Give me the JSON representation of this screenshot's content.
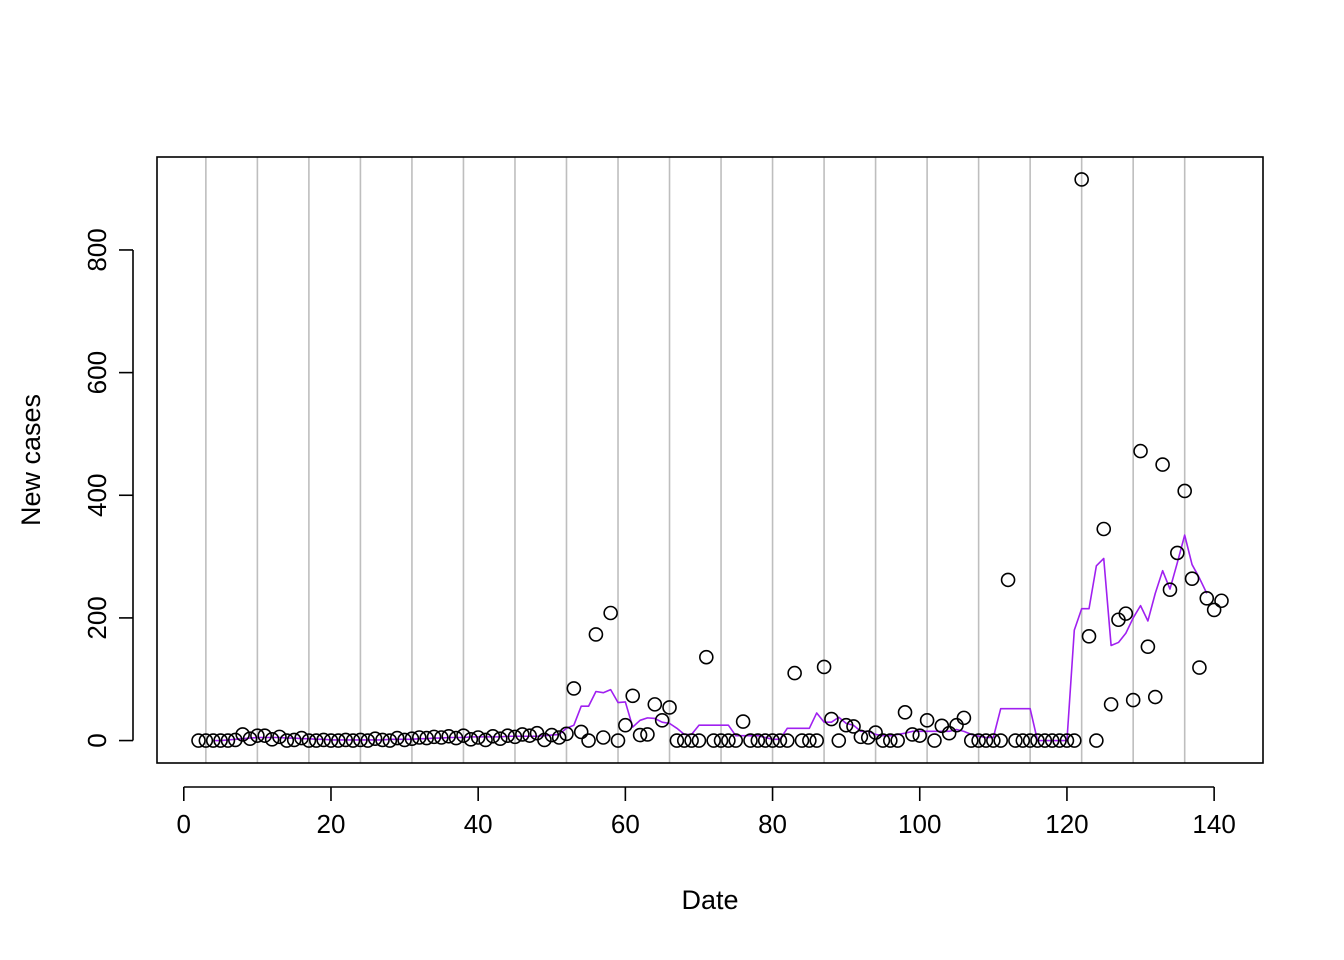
{
  "chart_data": {
    "type": "scatter",
    "title": "",
    "xlabel": "Date",
    "ylabel": "New cases",
    "xlim": [
      -3.64,
      146.64
    ],
    "ylim": [
      -36.6,
      951.6
    ],
    "xticks": [
      0,
      20,
      40,
      60,
      80,
      100,
      120,
      140
    ],
    "yticks": [
      0,
      200,
      400,
      600,
      800
    ],
    "grid": "vertical",
    "vlines": [
      3,
      10,
      17,
      24,
      31,
      38,
      45,
      52,
      59,
      66,
      73,
      80,
      87,
      94,
      101,
      108,
      115,
      122,
      129,
      136
    ],
    "colors": {
      "points": "#000000",
      "line": "#a020f0",
      "grid": "#bebebe",
      "axes": "#000000"
    },
    "series": [
      {
        "type": "scatter",
        "x": [
          2,
          3,
          4,
          5,
          6,
          7,
          8,
          9,
          10,
          11,
          12,
          13,
          14,
          15,
          16,
          17,
          18,
          19,
          20,
          21,
          22,
          23,
          24,
          25,
          26,
          27,
          28,
          29,
          30,
          31,
          32,
          33,
          34,
          35,
          36,
          37,
          38,
          39,
          40,
          41,
          42,
          43,
          44,
          45,
          46,
          47,
          48,
          49,
          50,
          51,
          52,
          53,
          54,
          55,
          56,
          57,
          58,
          59,
          60,
          61,
          62,
          63,
          64,
          65,
          66,
          67,
          68,
          69,
          70,
          71,
          72,
          73,
          74,
          75,
          76,
          77,
          78,
          79,
          80,
          81,
          82,
          83,
          84,
          85,
          86,
          87,
          88,
          89,
          90,
          91,
          92,
          93,
          94,
          95,
          96,
          97,
          98,
          99,
          100,
          101,
          102,
          103,
          104,
          105,
          106,
          107,
          108,
          109,
          110,
          111,
          112,
          113,
          114,
          115,
          116,
          117,
          118,
          119,
          120,
          121,
          122,
          123,
          124,
          125,
          126,
          127,
          128,
          129,
          130,
          131,
          132,
          133,
          134,
          135,
          136,
          137,
          138,
          139,
          140,
          141
        ],
        "y": [
          0,
          0,
          0,
          0,
          0,
          1,
          10,
          3,
          8,
          8,
          2,
          6,
          0,
          1,
          4,
          0,
          0,
          1,
          0,
          0,
          1,
          0,
          1,
          0,
          3,
          1,
          0,
          4,
          1,
          3,
          5,
          4,
          6,
          5,
          7,
          4,
          8,
          2,
          5,
          1,
          7,
          3,
          8,
          6,
          10,
          8,
          12,
          1,
          9,
          5,
          11,
          85,
          14,
          0,
          173,
          5,
          208,
          0,
          25,
          73,
          9,
          10,
          59,
          33,
          54,
          0,
          0,
          0,
          0,
          136,
          0,
          0,
          0,
          0,
          31,
          0,
          0,
          0,
          0,
          0,
          0,
          110,
          0,
          0,
          0,
          120,
          35,
          0,
          25,
          23,
          6,
          5,
          13,
          0,
          0,
          0,
          46,
          10,
          8,
          33,
          0,
          24,
          12,
          25,
          37,
          0,
          0,
          0,
          0,
          0,
          262,
          0,
          0,
          0,
          0,
          0,
          0,
          0,
          0,
          0,
          915,
          170,
          0,
          345,
          59,
          197,
          207,
          66,
          472,
          153,
          71,
          450,
          246,
          306,
          407,
          264,
          119,
          232,
          213,
          228
        ]
      },
      {
        "type": "line",
        "x": [
          4,
          5,
          6,
          7,
          8,
          9,
          10,
          11,
          12,
          13,
          14,
          15,
          16,
          17,
          18,
          19,
          20,
          21,
          22,
          23,
          24,
          25,
          26,
          27,
          28,
          29,
          30,
          31,
          32,
          33,
          34,
          35,
          36,
          37,
          38,
          39,
          40,
          41,
          42,
          43,
          44,
          45,
          46,
          47,
          48,
          49,
          50,
          51,
          52,
          53,
          54,
          55,
          56,
          57,
          58,
          59,
          60,
          61,
          62,
          63,
          64,
          65,
          66,
          67,
          68,
          69,
          70,
          71,
          72,
          73,
          74,
          75,
          76,
          77,
          78,
          79,
          80,
          81,
          82,
          83,
          84,
          85,
          86,
          87,
          88,
          89,
          90,
          91,
          92,
          93,
          94,
          95,
          96,
          97,
          98,
          99,
          100,
          101,
          102,
          103,
          104,
          105,
          106,
          107,
          108,
          109,
          110,
          111,
          112,
          113,
          114,
          115,
          116,
          117,
          118,
          119,
          120,
          121,
          122,
          123,
          124,
          125,
          126,
          127,
          128,
          129,
          130,
          131,
          132,
          133,
          134,
          135,
          136,
          137,
          138,
          139
        ],
        "y": [
          0,
          0,
          1,
          2,
          3,
          4,
          5,
          5,
          5,
          5,
          4,
          4,
          3,
          3,
          2,
          2,
          1,
          1,
          1,
          1,
          1,
          1,
          1,
          1,
          2,
          2,
          2,
          2,
          3,
          3,
          4,
          4,
          5,
          5,
          5,
          6,
          6,
          6,
          6,
          6,
          7,
          7,
          7,
          7,
          7,
          8,
          9,
          10,
          20,
          25,
          56,
          56,
          80,
          78,
          83,
          62,
          63,
          22,
          33,
          37,
          36,
          30,
          28,
          20,
          10,
          10,
          25,
          25,
          25,
          25,
          25,
          8,
          8,
          8,
          8,
          5,
          2,
          2,
          20,
          20,
          20,
          20,
          45,
          30,
          30,
          38,
          28,
          25,
          15,
          15,
          10,
          8,
          8,
          10,
          12,
          15,
          15,
          15,
          15,
          15,
          15,
          18,
          15,
          10,
          7,
          5,
          5,
          52,
          52,
          52,
          52,
          52,
          0,
          0,
          0,
          0,
          0,
          180,
          215,
          215,
          285,
          297,
          155,
          160,
          175,
          200,
          220,
          195,
          240,
          277,
          247,
          290,
          335,
          287,
          265,
          240
        ]
      }
    ]
  }
}
